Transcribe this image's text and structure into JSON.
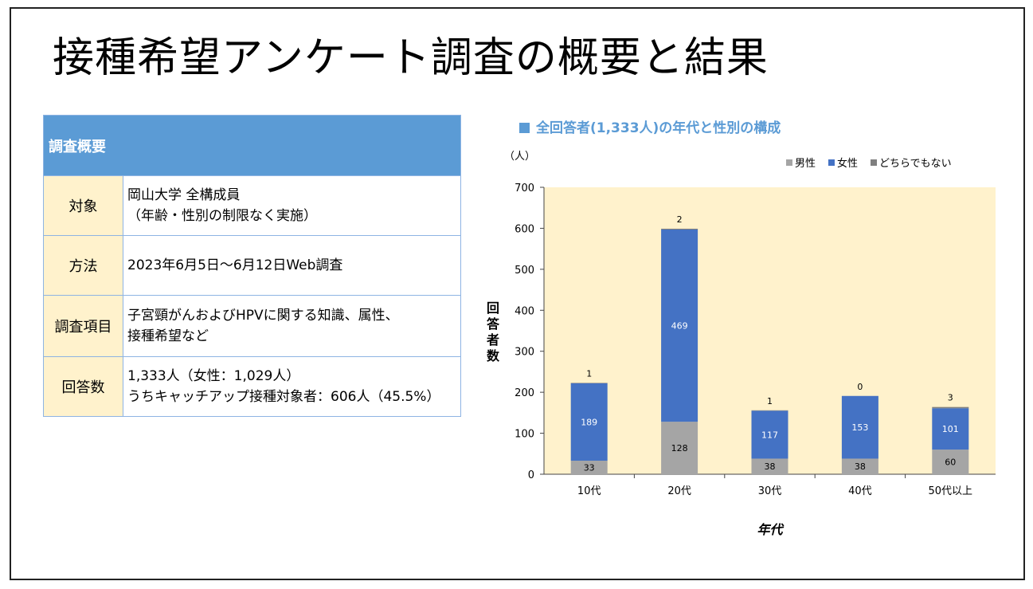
{
  "title": "接種希望アンケート調査の概要と結果",
  "summary_table": {
    "header": "調査概要",
    "rows": [
      {
        "label": "対象",
        "lines": [
          "岡山大学 全構成員",
          "（年齢・性別の制限なく実施）"
        ]
      },
      {
        "label": "方法",
        "lines": [
          "2023年6月5日～6月12日Web調査"
        ]
      },
      {
        "label": "調査項目",
        "lines": [
          "子宮頸がんおよびHPVに関する知識、属性、",
          "接種希望など"
        ]
      },
      {
        "label": "回答数",
        "lines": [
          "1,333人（女性：1,029人）",
          "うちキャッチアップ接種対象者：606人（45.5%）"
        ]
      }
    ]
  },
  "chart_data": {
    "type": "bar",
    "stacked": true,
    "title": "全回答者(1,333人)の年代と性別の構成",
    "unit_label": "（人）",
    "xlabel": "年代",
    "ylabel": "回答者数",
    "categories": [
      "10代",
      "20代",
      "30代",
      "40代",
      "50代以上"
    ],
    "series": [
      {
        "name": "男性",
        "color": "#a5a5a5",
        "values": [
          33,
          128,
          38,
          38,
          60
        ]
      },
      {
        "name": "女性",
        "color": "#4472c4",
        "values": [
          189,
          469,
          117,
          153,
          101
        ]
      },
      {
        "name": "どちらでもない",
        "color": "#7f7f7f",
        "values": [
          1,
          2,
          1,
          0,
          3
        ]
      }
    ],
    "ylim": [
      0,
      700
    ],
    "yticks": [
      0,
      100,
      200,
      300,
      400,
      500,
      600,
      700
    ],
    "plot_background": "#fff2cc",
    "legend_position": "top-right"
  }
}
